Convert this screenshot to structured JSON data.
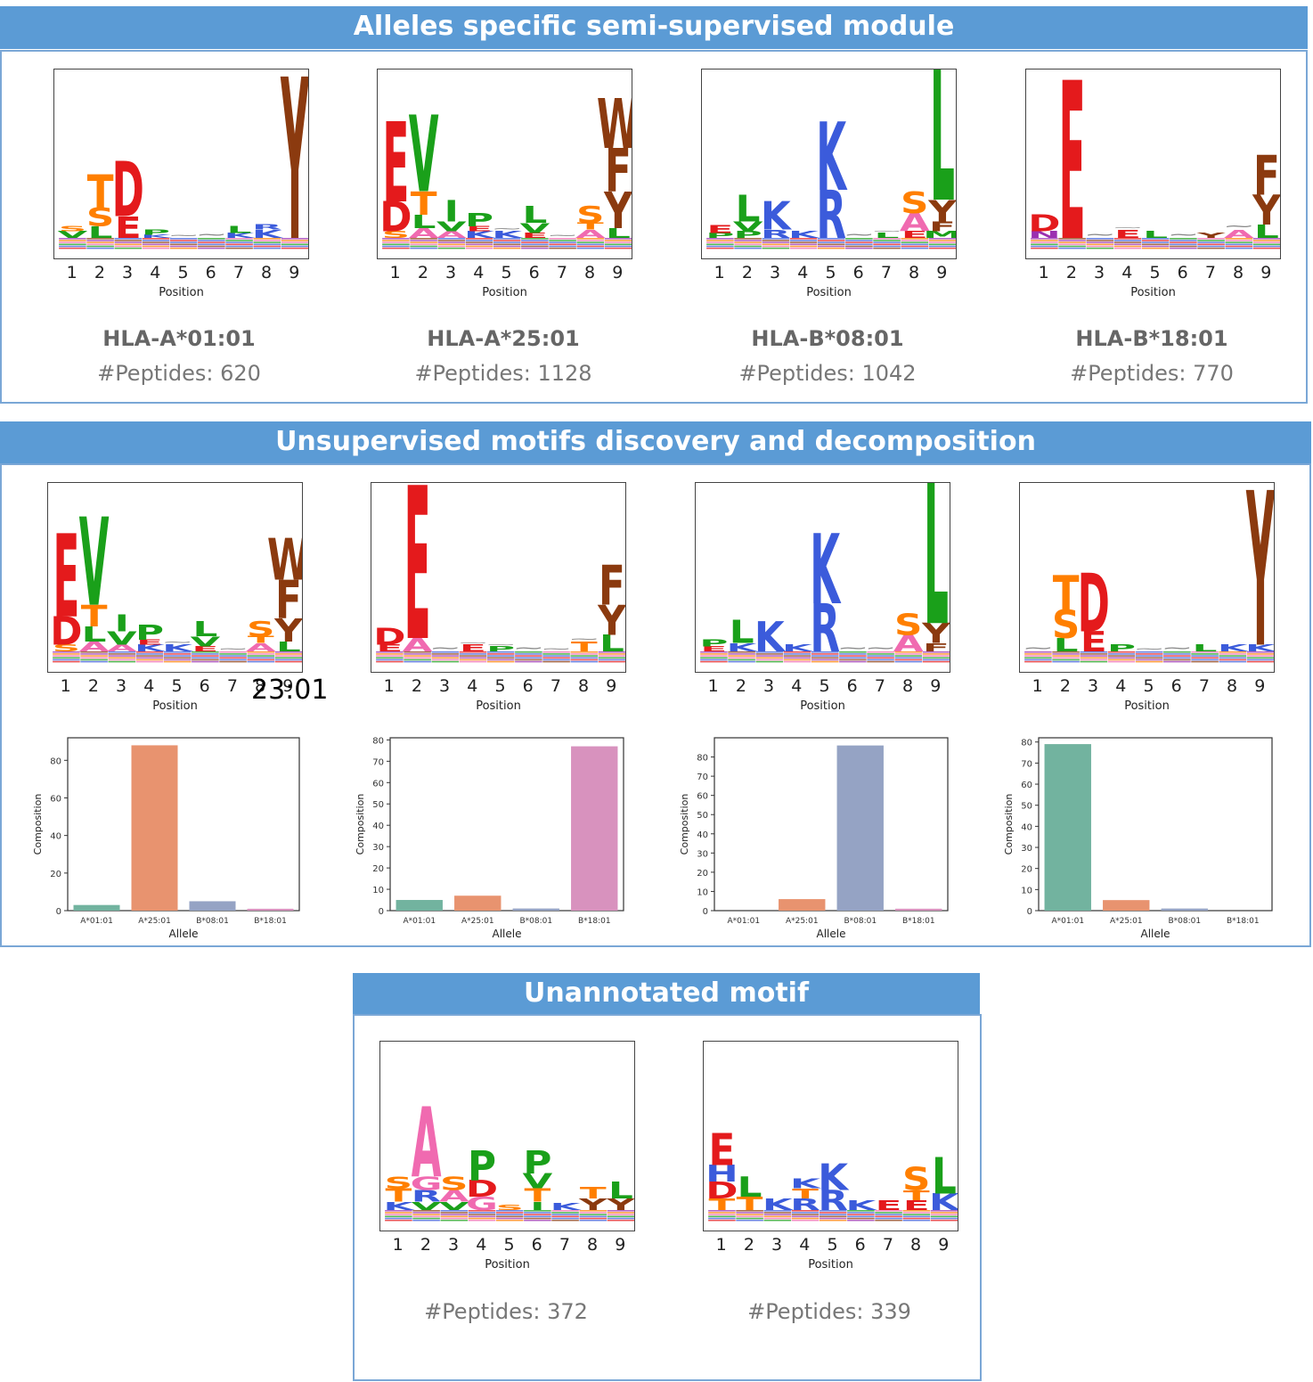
{
  "headers": {
    "semi": "Alleles specific semi-supervised module",
    "unsup": "Unsupervised motifs discovery and decomposition",
    "unann": "Unannotated motif"
  },
  "position_ticks": [
    "1",
    "2",
    "3",
    "4",
    "5",
    "6",
    "7",
    "8",
    "9"
  ],
  "position_label": "Position",
  "overlay_text": "23:01",
  "semi_panels": [
    {
      "allele": "HLA-A*01:01",
      "peptides": "#Peptides: 620"
    },
    {
      "allele": "HLA-A*25:01",
      "peptides": "#Peptides: 1128"
    },
    {
      "allele": "HLA-B*08:01",
      "peptides": "#Peptides: 1042"
    },
    {
      "allele": "HLA-B*18:01",
      "peptides": "#Peptides: 770"
    }
  ],
  "unann_panels": [
    {
      "peptides": "#Peptides: 372"
    },
    {
      "peptides": "#Peptides: 339"
    }
  ],
  "colors": {
    "header_bg": "#5b9bd5",
    "D": "#e41a1c",
    "E": "#e41a1c",
    "K": "#3b5bdb",
    "R": "#3b5bdb",
    "H": "#3b5bdb",
    "S": "#ff7f00",
    "T": "#ff7f00",
    "L": "#1aa01a",
    "V": "#1aa01a",
    "I": "#1aa01a",
    "P": "#1aa01a",
    "M": "#1aa01a",
    "Y": "#8b3a0f",
    "F": "#8b3a0f",
    "W": "#8b3a0f",
    "A": "#f06ab0",
    "G": "#f06ab0",
    "Q": "#9b30b0",
    "N": "#9b30b0",
    "C": "#9b30b0",
    "X": "#888888",
    "bar_A0101": "#72b39f",
    "bar_A2501": "#e8936f",
    "bar_B0801": "#95a3c4",
    "bar_B1801": "#d892be"
  },
  "logos": {
    "semi": [
      [
        [
          [
            "V",
            0.04
          ],
          [
            "S",
            0.03
          ]
        ],
        [
          [
            "L",
            0.07
          ],
          [
            "S",
            0.11
          ],
          [
            "T",
            0.2
          ]
        ],
        [
          [
            "E",
            0.13
          ],
          [
            "D",
            0.33
          ]
        ],
        [
          [
            "K",
            0.02
          ],
          [
            "P",
            0.03
          ]
        ],
        [
          [
            "X",
            0.03
          ]
        ],
        [
          [
            "X",
            0.04
          ]
        ],
        [
          [
            "K",
            0.03
          ],
          [
            "L",
            0.04
          ]
        ],
        [
          [
            "K",
            0.05
          ],
          [
            "R",
            0.03
          ]
        ],
        [
          [
            "Y",
            0.97
          ]
        ]
      ],
      [
        [
          [
            "S",
            0.04
          ],
          [
            "D",
            0.18
          ],
          [
            "E",
            0.48
          ]
        ],
        [
          [
            "A",
            0.06
          ],
          [
            "L",
            0.08
          ],
          [
            "T",
            0.14
          ],
          [
            "V",
            0.46
          ]
        ],
        [
          [
            "A",
            0.04
          ],
          [
            "V",
            0.06
          ],
          [
            "I",
            0.13
          ]
        ],
        [
          [
            "K",
            0.04
          ],
          [
            "E",
            0.03
          ],
          [
            "P",
            0.08
          ]
        ],
        [
          [
            "K",
            0.04
          ],
          [
            "X",
            0.03
          ]
        ],
        [
          [
            "E",
            0.03
          ],
          [
            "V",
            0.06
          ],
          [
            "L",
            0.1
          ]
        ],
        [
          [
            "X",
            0.03
          ]
        ],
        [
          [
            "A",
            0.05
          ],
          [
            "T",
            0.04
          ],
          [
            "S",
            0.1
          ]
        ],
        [
          [
            "L",
            0.06
          ],
          [
            "Y",
            0.22
          ],
          [
            "F",
            0.26
          ],
          [
            "W",
            0.3
          ]
        ]
      ],
      [
        [
          [
            "P",
            0.03
          ],
          [
            "E",
            0.05
          ]
        ],
        [
          [
            "P",
            0.04
          ],
          [
            "V",
            0.06
          ],
          [
            "L",
            0.16
          ]
        ],
        [
          [
            "R",
            0.05
          ],
          [
            "K",
            0.17
          ]
        ],
        [
          [
            "K",
            0.04
          ]
        ],
        [
          [
            "R",
            0.29
          ],
          [
            "K",
            0.41
          ]
        ],
        [
          [
            "X",
            0.04
          ]
        ],
        [
          [
            "L",
            0.03
          ],
          [
            "X",
            0.02
          ]
        ],
        [
          [
            "E",
            0.04
          ],
          [
            "A",
            0.11
          ],
          [
            "S",
            0.13
          ]
        ],
        [
          [
            "M",
            0.04
          ],
          [
            "F",
            0.06
          ],
          [
            "Y",
            0.13
          ],
          [
            "L",
            0.96
          ]
        ]
      ],
      [
        [
          [
            "N",
            0.04
          ],
          [
            "D",
            0.1
          ]
        ],
        [
          [
            "E",
            0.95
          ]
        ],
        [
          [
            "X",
            0.04
          ]
        ],
        [
          [
            "E",
            0.05
          ],
          [
            "X",
            0.02
          ]
        ],
        [
          [
            "L",
            0.04
          ]
        ],
        [
          [
            "X",
            0.04
          ]
        ],
        [
          [
            "Y",
            0.03
          ]
        ],
        [
          [
            "A",
            0.05
          ],
          [
            "X",
            0.04
          ]
        ],
        [
          [
            "L",
            0.08
          ],
          [
            "Y",
            0.18
          ],
          [
            "F",
            0.24
          ]
        ]
      ]
    ],
    "unsup": [
      [
        [
          [
            "S",
            0.04
          ],
          [
            "D",
            0.17
          ],
          [
            "E",
            0.5
          ]
        ],
        [
          [
            "A",
            0.06
          ],
          [
            "L",
            0.09
          ],
          [
            "T",
            0.13
          ],
          [
            "V",
            0.53
          ]
        ],
        [
          [
            "A",
            0.04
          ],
          [
            "V",
            0.08
          ],
          [
            "I",
            0.1
          ]
        ],
        [
          [
            "K",
            0.04
          ],
          [
            "E",
            0.03
          ],
          [
            "P",
            0.09
          ]
        ],
        [
          [
            "K",
            0.04
          ],
          [
            "X",
            0.03
          ]
        ],
        [
          [
            "E",
            0.03
          ],
          [
            "V",
            0.06
          ],
          [
            "L",
            0.09
          ]
        ],
        [
          [
            "X",
            0.03
          ]
        ],
        [
          [
            "A",
            0.05
          ],
          [
            "T",
            0.04
          ],
          [
            "S",
            0.09
          ]
        ],
        [
          [
            "L",
            0.06
          ],
          [
            "Y",
            0.14
          ],
          [
            "F",
            0.23
          ],
          [
            "W",
            0.25
          ]
        ]
      ],
      [
        [
          [
            "E",
            0.04
          ],
          [
            "D",
            0.1
          ]
        ],
        [
          [
            "A",
            0.08
          ],
          [
            "E",
            0.92
          ]
        ],
        [
          [
            "X",
            0.04
          ]
        ],
        [
          [
            "E",
            0.04
          ],
          [
            "X",
            0.02
          ]
        ],
        [
          [
            "P",
            0.03
          ],
          [
            "X",
            0.02
          ]
        ],
        [
          [
            "X",
            0.04
          ]
        ],
        [
          [
            "X",
            0.03
          ]
        ],
        [
          [
            "T",
            0.06
          ],
          [
            "X",
            0.03
          ]
        ],
        [
          [
            "L",
            0.1
          ],
          [
            "Y",
            0.18
          ],
          [
            "F",
            0.24
          ]
        ]
      ],
      [
        [
          [
            "E",
            0.03
          ],
          [
            "P",
            0.04
          ]
        ],
        [
          [
            "K",
            0.05
          ],
          [
            "L",
            0.14
          ]
        ],
        [
          [
            "K",
            0.18
          ]
        ],
        [
          [
            "K",
            0.04
          ]
        ],
        [
          [
            "R",
            0.29
          ],
          [
            "K",
            0.42
          ]
        ],
        [
          [
            "X",
            0.04
          ]
        ],
        [
          [
            "X",
            0.04
          ]
        ],
        [
          [
            "A",
            0.1
          ],
          [
            "S",
            0.13
          ]
        ],
        [
          [
            "F",
            0.05
          ],
          [
            "Y",
            0.12
          ],
          [
            "L",
            0.97
          ]
        ]
      ],
      [
        [
          [
            "X",
            0.04
          ]
        ],
        [
          [
            "L",
            0.08
          ],
          [
            "S",
            0.17
          ],
          [
            "T",
            0.21
          ]
        ],
        [
          [
            "E",
            0.12
          ],
          [
            "D",
            0.35
          ]
        ],
        [
          [
            "P",
            0.04
          ]
        ],
        [
          [
            "X",
            0.03
          ]
        ],
        [
          [
            "X",
            0.04
          ]
        ],
        [
          [
            "L",
            0.04
          ]
        ],
        [
          [
            "K",
            0.04
          ]
        ],
        [
          [
            "K",
            0.04
          ],
          [
            "Y",
            0.93
          ]
        ]
      ]
    ],
    "unann": [
      [
        [
          [
            "K",
            0.05
          ],
          [
            "T",
            0.08
          ],
          [
            "S",
            0.07
          ]
        ],
        [
          [
            "V",
            0.05
          ],
          [
            "R",
            0.07
          ],
          [
            "G",
            0.08
          ],
          [
            "A",
            0.42
          ]
        ],
        [
          [
            "V",
            0.05
          ],
          [
            "A",
            0.07
          ],
          [
            "S",
            0.08
          ]
        ],
        [
          [
            "G",
            0.08
          ],
          [
            "D",
            0.1
          ],
          [
            "P",
            0.18
          ]
        ],
        [
          [
            "S",
            0.03
          ]
        ],
        [
          [
            "I",
            0.05
          ],
          [
            "T",
            0.08
          ],
          [
            "V",
            0.09
          ],
          [
            "P",
            0.14
          ]
        ],
        [
          [
            "K",
            0.04
          ]
        ],
        [
          [
            "Y",
            0.07
          ],
          [
            "T",
            0.07
          ]
        ],
        [
          [
            "Y",
            0.07
          ],
          [
            "L",
            0.1
          ]
        ]
      ],
      [
        [
          [
            "T",
            0.07
          ],
          [
            "D",
            0.1
          ],
          [
            "H",
            0.1
          ],
          [
            "E",
            0.19
          ]
        ],
        [
          [
            "T",
            0.08
          ],
          [
            "L",
            0.12
          ]
        ],
        [
          [
            "K",
            0.07
          ]
        ],
        [
          [
            "R",
            0.07
          ],
          [
            "T",
            0.06
          ],
          [
            "K",
            0.06
          ]
        ],
        [
          [
            "R",
            0.12
          ],
          [
            "K",
            0.16
          ]
        ],
        [
          [
            "K",
            0.06
          ]
        ],
        [
          [
            "E",
            0.06
          ]
        ],
        [
          [
            "E",
            0.06
          ],
          [
            "T",
            0.06
          ],
          [
            "S",
            0.14
          ]
        ],
        [
          [
            "K",
            0.1
          ],
          [
            "L",
            0.22
          ]
        ]
      ]
    ]
  },
  "composition_charts": {
    "ylabel": "Composition",
    "xlabel": "Allele",
    "categories": [
      "A*01:01",
      "A*25:01",
      "B*08:01",
      "B*18:01"
    ],
    "charts": [
      {
        "values": [
          3,
          88,
          5,
          1
        ],
        "ylim": [
          0,
          92
        ],
        "yticks": [
          0,
          20,
          40,
          60,
          80
        ]
      },
      {
        "values": [
          5,
          7,
          1,
          77
        ],
        "ylim": [
          0,
          81
        ],
        "yticks": [
          0,
          10,
          20,
          30,
          40,
          50,
          60,
          70,
          80
        ]
      },
      {
        "values": [
          0,
          6,
          86,
          1
        ],
        "ylim": [
          0,
          90
        ],
        "yticks": [
          0,
          10,
          20,
          30,
          40,
          50,
          60,
          70,
          80
        ]
      },
      {
        "values": [
          79,
          5,
          1,
          0
        ],
        "ylim": [
          0,
          82
        ],
        "yticks": [
          0,
          10,
          20,
          30,
          40,
          50,
          60,
          70,
          80
        ]
      }
    ]
  },
  "chart_data": [
    {
      "type": "bar",
      "title": "",
      "xlabel": "Allele",
      "ylabel": "Composition",
      "categories": [
        "A*01:01",
        "A*25:01",
        "B*08:01",
        "B*18:01"
      ],
      "values": [
        3,
        88,
        5,
        1
      ],
      "ylim": [
        0,
        92
      ]
    },
    {
      "type": "bar",
      "title": "",
      "xlabel": "Allele",
      "ylabel": "Composition",
      "categories": [
        "A*01:01",
        "A*25:01",
        "B*08:01",
        "B*18:01"
      ],
      "values": [
        5,
        7,
        1,
        77
      ],
      "ylim": [
        0,
        81
      ]
    },
    {
      "type": "bar",
      "title": "",
      "xlabel": "Allele",
      "ylabel": "Composition",
      "categories": [
        "A*01:01",
        "A*25:01",
        "B*08:01",
        "B*18:01"
      ],
      "values": [
        0,
        6,
        86,
        1
      ],
      "ylim": [
        0,
        90
      ]
    },
    {
      "type": "bar",
      "title": "",
      "xlabel": "Allele",
      "ylabel": "Composition",
      "categories": [
        "A*01:01",
        "A*25:01",
        "B*08:01",
        "B*18:01"
      ],
      "values": [
        79,
        5,
        1,
        0
      ],
      "ylim": [
        0,
        82
      ]
    }
  ]
}
